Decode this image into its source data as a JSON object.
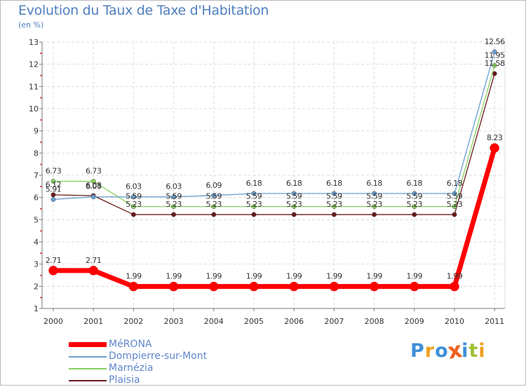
{
  "header": {
    "title": "Evolution du Taux de Taxe d'Habitation",
    "subtitle": "(en %)"
  },
  "chart_data": {
    "type": "line",
    "title": "Evolution du Taux de Taxe d'Habitation",
    "ylabel": "(en %)",
    "xlabel": "",
    "categories": [
      "2000",
      "2001",
      "2002",
      "2003",
      "2004",
      "2005",
      "2006",
      "2007",
      "2008",
      "2009",
      "2010",
      "2011"
    ],
    "ylim": [
      1,
      13
    ],
    "yticks": [
      "1",
      "2",
      "3",
      "4",
      "5",
      "6",
      "7",
      "8",
      "9",
      "10",
      "11",
      "12",
      "13"
    ],
    "grid": true,
    "legend_position": "bottom-left",
    "series": [
      {
        "name": "Plaisia",
        "color": "#6a1a1a",
        "values": [
          6.12,
          6.08,
          5.23,
          5.23,
          5.23,
          5.23,
          5.23,
          5.23,
          5.23,
          5.23,
          5.23,
          11.58
        ],
        "labels": [
          "6.12",
          "6.08",
          "5.23",
          "5.23",
          "5.23",
          "5.23",
          "5.23",
          "5.23",
          "5.23",
          "5.23",
          "5.23",
          "11.58"
        ]
      },
      {
        "name": "Marnézia",
        "color": "#88d060",
        "values": [
          6.73,
          6.73,
          5.59,
          5.59,
          5.59,
          5.59,
          5.59,
          5.59,
          5.59,
          5.59,
          5.59,
          11.95
        ],
        "labels": [
          "6.73",
          "6.73",
          "5.59",
          "5.59",
          "5.59",
          "5.59",
          "5.59",
          "5.59",
          "5.59",
          "5.59",
          "5.59",
          "11.95"
        ]
      },
      {
        "name": "Dompierre-sur-Mont",
        "color": "#6a9fd0",
        "values": [
          5.91,
          6.03,
          6.03,
          6.03,
          6.09,
          6.18,
          6.18,
          6.18,
          6.18,
          6.18,
          6.18,
          12.56
        ],
        "labels": [
          "5.91",
          "6.03",
          "6.03",
          "6.03",
          "6.09",
          "6.18",
          "6.18",
          "6.18",
          "6.18",
          "6.18",
          "6.18",
          "12.56"
        ]
      },
      {
        "name": "MéRONA",
        "color": "#ff0000",
        "values": [
          2.71,
          2.71,
          1.99,
          1.99,
          1.99,
          1.99,
          1.99,
          1.99,
          1.99,
          1.99,
          1.99,
          8.23
        ],
        "labels": [
          "2.71",
          "2.71",
          "1.99",
          "1.99",
          "1.99",
          "1.99",
          "1.99",
          "1.99",
          "1.99",
          "1.99",
          "1.99",
          "8.23"
        ]
      }
    ]
  },
  "legend": {
    "items": [
      {
        "label": "MéRONA",
        "color": "#ff0000"
      },
      {
        "label": "Dompierre-sur-Mont",
        "color": "#6a9fd0"
      },
      {
        "label": "Marnézia",
        "color": "#88d060"
      },
      {
        "label": "Plaisia",
        "color": "#6a1a1a"
      }
    ]
  },
  "logo": {
    "text": "Proxiti",
    "letters": [
      "P",
      "r",
      "o",
      "x",
      "i",
      "t",
      "i"
    ],
    "colors": [
      "#3f8fd8",
      "#f0a020",
      "#3f8fd8",
      "#f06020",
      "#3f8fd8",
      "#a0c030",
      "#f0a020"
    ]
  }
}
